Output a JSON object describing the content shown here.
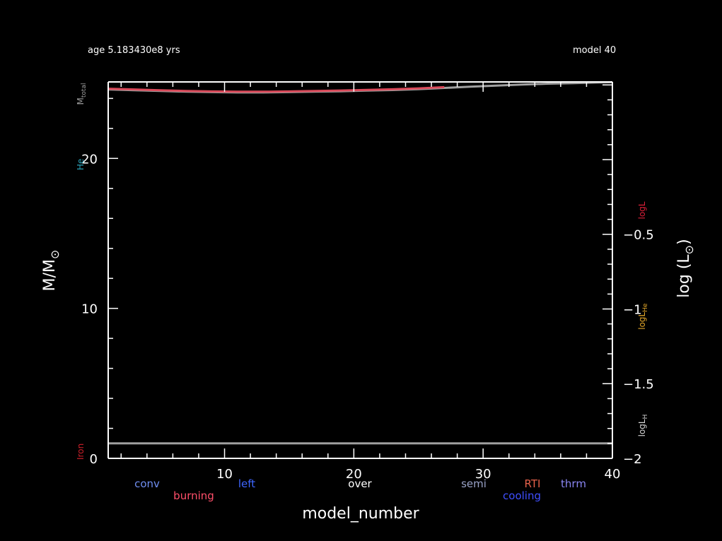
{
  "header": {
    "age_text": "age 5.183430e8 yrs",
    "model_text": "model 40"
  },
  "chart_data": {
    "type": "line",
    "xlabel": "model_number",
    "ylabel_left": "M/M",
    "ylabel_left_symbol": "⊙",
    "ylabel_right": "log (L",
    "ylabel_right_symbol": "⊙",
    "ylabel_right_close": ")",
    "xlim": [
      1,
      40
    ],
    "ylim_left": [
      0,
      25.1
    ],
    "ylim_right": [
      -2,
      0.52
    ],
    "x_ticks": [
      10,
      20,
      30,
      40
    ],
    "y_left_ticks": [
      0,
      10,
      20
    ],
    "y_right_ticks": [
      -2,
      -1.5,
      -1,
      -0.5
    ],
    "y_right_tick_labels": [
      "−2",
      "−1.5",
      "−1",
      "−0.5"
    ],
    "left_side_labels": [
      {
        "text": "M",
        "sub": "total",
        "color": "#9e9e9e",
        "y": 24.3
      },
      {
        "text": "He",
        "sub": "",
        "color": "#2a9fb5",
        "y": 19.6
      },
      {
        "text": "Iron",
        "sub": "",
        "color": "#d0202b",
        "y": 0.45
      }
    ],
    "right_side_labels": [
      {
        "text": "logL",
        "sub": "",
        "color": "#e0203a",
        "y": -0.34
      },
      {
        "text": "logL",
        "sub": "He",
        "color": "#e6a92a",
        "y": -1.05
      },
      {
        "text": "logL",
        "sub": "H",
        "color": "#d8d8d8",
        "y": -1.78
      }
    ],
    "legend": [
      {
        "text": "conv",
        "color": "#6f8ef0",
        "row": 0
      },
      {
        "text": "burning",
        "color": "#ff4f6a",
        "row": 1
      },
      {
        "text": "left",
        "color": "#3e66ff",
        "row": 0
      },
      {
        "text": "over",
        "color": "#ffffff",
        "row": 0
      },
      {
        "text": "semi",
        "color": "#9aa3c8",
        "row": 0
      },
      {
        "text": "RTI",
        "color": "#e5614a",
        "row": 0
      },
      {
        "text": "cooling",
        "color": "#3f4fff",
        "row": 1
      },
      {
        "text": "thrm",
        "color": "#8a86f3",
        "row": 0
      }
    ],
    "series": [
      {
        "color": "#a0a0a0",
        "x": [
          1,
          3,
          5,
          7,
          9,
          11,
          13,
          15,
          17,
          19,
          21,
          23,
          25,
          27,
          29,
          31,
          33,
          35,
          37,
          39,
          40
        ],
        "y": [
          24.6,
          24.55,
          24.5,
          24.45,
          24.42,
          24.4,
          24.4,
          24.42,
          24.45,
          24.48,
          24.52,
          24.56,
          24.62,
          24.7,
          24.78,
          24.85,
          24.92,
          24.98,
          25.02,
          25.06,
          25.08
        ]
      },
      {
        "color": "#a0a0a0",
        "x": [
          1,
          40
        ],
        "y": [
          1.0,
          1.0
        ]
      },
      {
        "color": "#d94a5a",
        "x": [
          1,
          3,
          5,
          7,
          9,
          11,
          13,
          15,
          17,
          19,
          21,
          23,
          25,
          27
        ],
        "y": [
          24.65,
          24.6,
          24.55,
          24.5,
          24.47,
          24.45,
          24.45,
          24.47,
          24.5,
          24.53,
          24.57,
          24.61,
          24.67,
          24.75
        ]
      }
    ]
  }
}
